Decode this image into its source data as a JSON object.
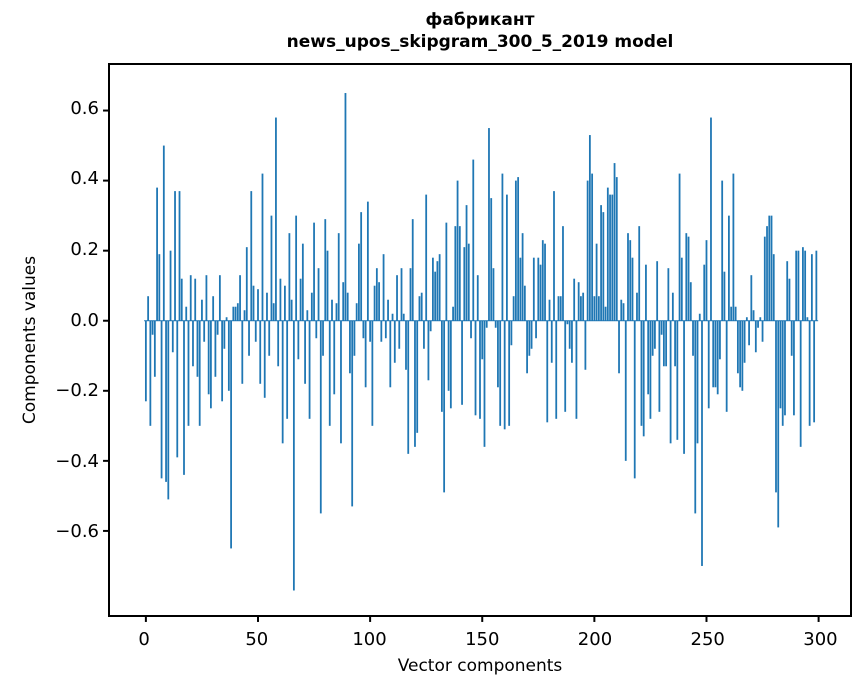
{
  "figure": {
    "title_line1": "фабрикант",
    "title_line2": "news_upos_skipgram_300_5_2019 model",
    "xlabel": "Vector components",
    "ylabel": "Components values"
  },
  "chart_data": {
    "type": "bar",
    "title": "фабрикант — news_upos_skipgram_300_5_2019 model",
    "xlabel": "Vector components",
    "ylabel": "Components values",
    "bar_color": "#1f77b4",
    "axis_color": "#000000",
    "n_components": 300,
    "x_start_index": 0,
    "xlim": [
      -16,
      314
    ],
    "ylim": [
      -0.84,
      0.73
    ],
    "x_ticks": [
      0,
      50,
      100,
      150,
      200,
      250,
      300
    ],
    "x_tick_labels": [
      "0",
      "50",
      "100",
      "150",
      "200",
      "250",
      "300"
    ],
    "y_ticks": [
      0.6,
      0.4,
      0.2,
      0.0,
      -0.2,
      -0.4,
      -0.6
    ],
    "y_tick_labels": [
      "0.6",
      "0.4",
      "0.2",
      "0.0",
      "−0.2",
      "−0.4",
      "−0.6"
    ],
    "grid": false,
    "legend": null,
    "values": [
      -0.23,
      0.07,
      -0.3,
      -0.04,
      -0.16,
      0.38,
      0.19,
      -0.45,
      0.5,
      -0.46,
      -0.51,
      0.2,
      -0.09,
      0.37,
      -0.39,
      0.37,
      0.12,
      -0.44,
      0.04,
      -0.3,
      0.13,
      -0.13,
      0.12,
      -0.16,
      -0.3,
      0.06,
      -0.06,
      0.13,
      -0.21,
      -0.25,
      0.07,
      -0.16,
      -0.04,
      0.13,
      -0.23,
      -0.08,
      0.01,
      -0.2,
      -0.65,
      0.04,
      0.04,
      0.05,
      0.13,
      -0.18,
      0.03,
      0.21,
      -0.1,
      0.37,
      0.1,
      -0.06,
      0.09,
      -0.18,
      0.42,
      -0.22,
      0.08,
      -0.1,
      0.3,
      0.05,
      0.58,
      -0.13,
      0.12,
      -0.35,
      0.1,
      -0.28,
      0.25,
      0.06,
      -0.77,
      0.3,
      -0.11,
      0.12,
      0.22,
      -0.18,
      0.03,
      -0.28,
      0.08,
      0.28,
      -0.05,
      0.15,
      -0.55,
      -0.1,
      0.29,
      0.2,
      -0.3,
      0.06,
      -0.21,
      0.05,
      0.25,
      -0.35,
      0.11,
      0.65,
      0.08,
      -0.15,
      -0.53,
      -0.1,
      0.05,
      0.22,
      0.31,
      -0.05,
      -0.19,
      0.34,
      -0.06,
      -0.3,
      0.1,
      0.15,
      0.11,
      -0.06,
      0.19,
      -0.05,
      0.06,
      -0.19,
      0.02,
      -0.12,
      0.13,
      -0.08,
      0.15,
      0.02,
      -0.14,
      -0.38,
      0.15,
      0.29,
      -0.36,
      -0.32,
      0.07,
      0.08,
      -0.08,
      0.36,
      -0.17,
      -0.03,
      0.18,
      0.14,
      0.17,
      0.19,
      -0.26,
      -0.49,
      0.28,
      -0.2,
      -0.25,
      0.04,
      0.27,
      0.4,
      0.27,
      -0.24,
      0.21,
      0.33,
      0.22,
      -0.05,
      0.46,
      -0.27,
      0.13,
      -0.28,
      -0.11,
      -0.36,
      -0.02,
      0.55,
      0.35,
      0.15,
      -0.02,
      -0.19,
      -0.3,
      0.42,
      -0.31,
      0.36,
      -0.3,
      -0.07,
      0.07,
      0.4,
      0.41,
      0.18,
      0.25,
      0.1,
      -0.15,
      -0.1,
      -0.08,
      0.18,
      -0.05,
      0.18,
      0.16,
      0.23,
      0.22,
      -0.29,
      0.06,
      -0.12,
      0.37,
      -0.28,
      0.07,
      0.07,
      0.27,
      -0.26,
      -0.01,
      -0.08,
      -0.12,
      0.12,
      -0.28,
      0.11,
      0.07,
      0.08,
      -0.14,
      0.4,
      0.53,
      0.42,
      0.07,
      0.22,
      0.07,
      0.33,
      0.31,
      0.04,
      0.38,
      0.36,
      0.36,
      0.45,
      0.41,
      -0.15,
      0.06,
      0.05,
      -0.4,
      0.25,
      0.23,
      0.18,
      -0.45,
      0.08,
      0.27,
      -0.3,
      -0.33,
      0.16,
      -0.21,
      -0.28,
      -0.1,
      -0.08,
      0.17,
      -0.26,
      -0.04,
      -0.13,
      -0.13,
      0.15,
      -0.35,
      0.08,
      -0.13,
      -0.34,
      0.42,
      0.18,
      -0.38,
      0.25,
      0.24,
      0.11,
      -0.1,
      -0.55,
      -0.35,
      0.02,
      -0.7,
      0.16,
      0.23,
      -0.25,
      0.58,
      -0.19,
      -0.19,
      -0.21,
      -0.11,
      0.4,
      0.14,
      -0.26,
      0.3,
      0.04,
      0.42,
      0.04,
      -0.15,
      -0.19,
      -0.2,
      -0.12,
      0.01,
      -0.07,
      0.13,
      0.03,
      -0.09,
      -0.02,
      0.01,
      -0.06,
      0.24,
      0.27,
      0.3,
      0.3,
      0.19,
      -0.49,
      -0.59,
      -0.25,
      -0.3,
      -0.27,
      0.17,
      0.12,
      -0.1,
      -0.27,
      0.2,
      0.2,
      -0.36,
      0.21,
      0.2,
      0.01,
      -0.3,
      0.19,
      -0.29,
      0.2
    ]
  }
}
